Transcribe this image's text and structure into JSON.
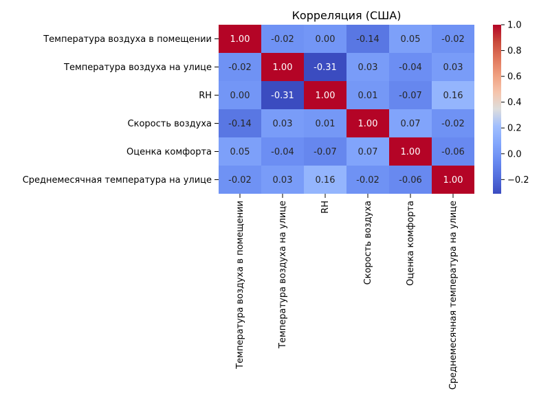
{
  "chart_data": {
    "type": "heatmap",
    "title": "Корреляция (США)",
    "xlabel": "",
    "ylabel": "",
    "row_labels": [
      "Температура воздуха в помещении",
      "Температура воздуха на улице",
      "RH",
      "Скорость воздуха",
      "Оценка комфорта",
      "Среднемесячная температура на улице"
    ],
    "col_labels": [
      "Температура воздуха в помещении",
      "Температура воздуха на улице",
      "RH",
      "Скорость воздуха",
      "Оценка комфорта",
      "Среднемесячная температура на улице"
    ],
    "values": [
      [
        1.0,
        -0.02,
        0.0,
        -0.14,
        0.05,
        -0.02
      ],
      [
        -0.02,
        1.0,
        -0.31,
        0.03,
        -0.04,
        0.03
      ],
      [
        0.0,
        -0.31,
        1.0,
        0.01,
        -0.07,
        0.16
      ],
      [
        -0.14,
        0.03,
        0.01,
        1.0,
        0.07,
        -0.02
      ],
      [
        0.05,
        -0.04,
        -0.07,
        0.07,
        1.0,
        -0.06
      ],
      [
        -0.02,
        0.03,
        0.16,
        -0.02,
        -0.06,
        1.0
      ]
    ],
    "cell_labels": [
      [
        "1.00",
        "-0.02",
        "0.00",
        "-0.14",
        "0.05",
        "-0.02"
      ],
      [
        "-0.02",
        "1.00",
        "-0.31",
        "0.03",
        "-0.04",
        "0.03"
      ],
      [
        "0.00",
        "-0.31",
        "1.00",
        "0.01",
        "-0.07",
        "0.16"
      ],
      [
        "-0.14",
        "0.03",
        "0.01",
        "1.00",
        "0.07",
        "-0.02"
      ],
      [
        "0.05",
        "-0.04",
        "-0.07",
        "0.07",
        "1.00",
        "-0.06"
      ],
      [
        "-0.02",
        "0.03",
        "0.16",
        "-0.02",
        "-0.06",
        "1.00"
      ]
    ],
    "colormap": "coolwarm",
    "color_range": [
      -0.31,
      1.0
    ],
    "colorbar_ticks": [
      1.0,
      0.8,
      0.6,
      0.4,
      0.2,
      0.0,
      -0.2
    ],
    "colorbar_tick_labels": [
      "1.0",
      "0.8",
      "0.6",
      "0.4",
      "0.2",
      "0.0",
      "−0.2"
    ],
    "annotation_colors": {
      "dark_text": "#262626",
      "light_text": "#ffffff"
    },
    "grid": false
  }
}
